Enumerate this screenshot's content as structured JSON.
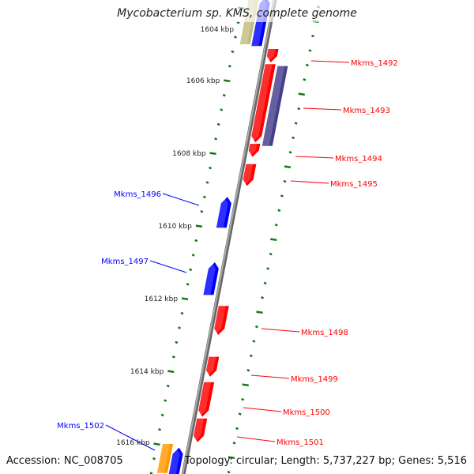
{
  "title": "Mycobacterium sp. KMS, complete genome",
  "footer": {
    "accession": "Accession: NC_008705",
    "topology": "Topology: circular; Length: 5,737,227 bp; Genes: 5,516"
  },
  "colors": {
    "forward": "#0000ff",
    "reverse": "#ff0000",
    "other_outer": "#c2be7e",
    "purple": "#443f8c",
    "orange": "#ff9900",
    "tick": "#117711",
    "backbone": "#888888"
  },
  "scale_ticks": [
    "1604 kbp",
    "1606 kbp",
    "1608 kbp",
    "1610 kbp",
    "1612 kbp",
    "1614 kbp",
    "1616 kbp"
  ],
  "genes": [
    {
      "name": "",
      "strand": "+",
      "track": "outer",
      "color": "#c2be7e",
      "start": 1603.7,
      "end": 1605.0
    },
    {
      "name": "",
      "strand": "+",
      "track": "inner",
      "color": "#0000ff",
      "start": 1603.7,
      "end": 1605.05
    },
    {
      "name": "Mkms_1492",
      "strand": "-",
      "track": "inner",
      "color": "#ff0000",
      "start": 1605.13,
      "end": 1605.5
    },
    {
      "name": "Mkms_1493",
      "strand": "-",
      "track": "inner",
      "color": "#ff0000",
      "start": 1605.55,
      "end": 1607.7
    },
    {
      "name": "",
      "strand": "-",
      "track": "outer",
      "color": "#443f8c",
      "start": 1605.6,
      "end": 1607.8
    },
    {
      "name": "Mkms_1494",
      "strand": "-",
      "track": "inner",
      "color": "#ff0000",
      "start": 1607.74,
      "end": 1608.1
    },
    {
      "name": "Mkms_1495",
      "strand": "-",
      "track": "inner",
      "color": "#ff0000",
      "start": 1608.3,
      "end": 1608.9
    },
    {
      "name": "Mkms_1496",
      "strand": "+",
      "track": "inner",
      "color": "#0000ff",
      "start": 1609.2,
      "end": 1610.05
    },
    {
      "name": "Mkms_1497",
      "strand": "+",
      "track": "inner",
      "color": "#0000ff",
      "start": 1611.0,
      "end": 1611.9
    },
    {
      "name": "Mkms_1498",
      "strand": "-",
      "track": "inner",
      "color": "#ff0000",
      "start": 1612.2,
      "end": 1613.0
    },
    {
      "name": "Mkms_1499",
      "strand": "-",
      "track": "inner",
      "color": "#ff0000",
      "start": 1613.6,
      "end": 1614.15
    },
    {
      "name": "Mkms_1500",
      "strand": "-",
      "track": "inner",
      "color": "#ff0000",
      "start": 1614.3,
      "end": 1615.25
    },
    {
      "name": "Mkms_1501",
      "strand": "-",
      "track": "inner",
      "color": "#ff0000",
      "start": 1615.3,
      "end": 1615.95
    },
    {
      "name": "",
      "strand": "+",
      "track": "outer",
      "color": "#ff9900",
      "start": 1616.0,
      "end": 1616.8
    },
    {
      "name": "Mkms_1502",
      "strand": "+",
      "track": "inner",
      "color": "#0000ff",
      "start": 1616.1,
      "end": 1616.85
    }
  ]
}
